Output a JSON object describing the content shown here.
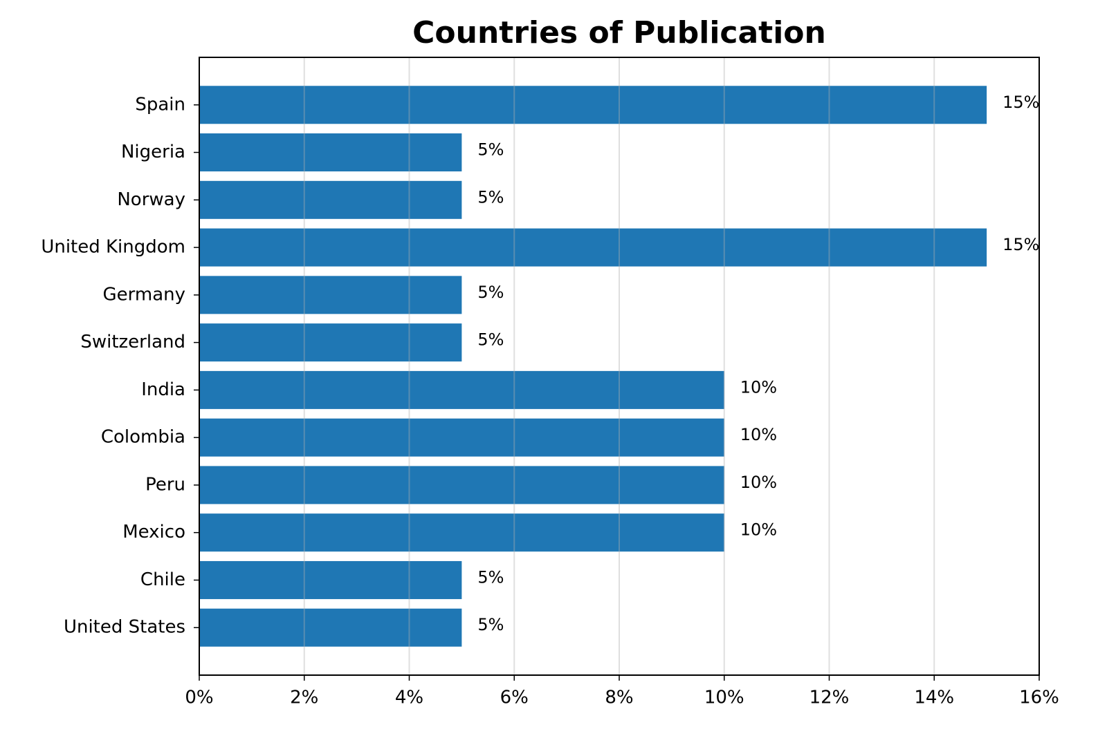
{
  "chart_data": {
    "type": "barh",
    "title": "Countries of Publication",
    "categories": [
      "Spain",
      "Nigeria",
      "Norway",
      "United Kingdom",
      "Germany",
      "Switzerland",
      "India",
      "Colombia",
      "Peru",
      "Mexico",
      "Chile",
      "United States"
    ],
    "values": [
      15,
      5,
      5,
      15,
      5,
      5,
      10,
      10,
      10,
      10,
      5,
      5
    ],
    "value_labels": [
      "15%",
      "5%",
      "5%",
      "15%",
      "5%",
      "5%",
      "10%",
      "10%",
      "10%",
      "10%",
      "5%",
      "5%"
    ],
    "color": "#1f77b4",
    "xlim": [
      0,
      16
    ],
    "xticks": [
      {
        "value": 0,
        "label": "0%"
      },
      {
        "value": 2,
        "label": "2%"
      },
      {
        "value": 4,
        "label": "4%"
      },
      {
        "value": 6,
        "label": "6%"
      },
      {
        "value": 8,
        "label": "8%"
      },
      {
        "value": 10,
        "label": "10%"
      },
      {
        "value": 12,
        "label": "12%"
      },
      {
        "value": 14,
        "label": "14%"
      },
      {
        "value": 16,
        "label": "16%"
      }
    ],
    "grid": true
  }
}
